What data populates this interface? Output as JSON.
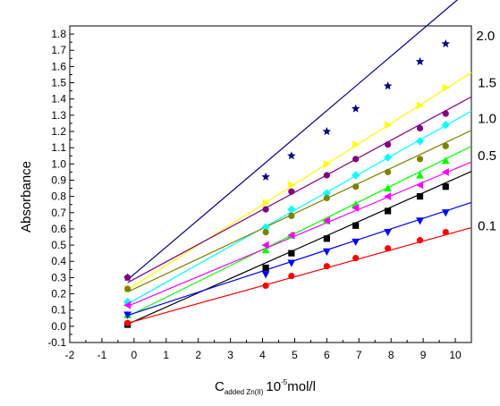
{
  "chart_data": {
    "type": "scatter",
    "ylabel": "Absorbance",
    "xlabel": {
      "main": "C",
      "subscript": "added Zn(II)",
      "unit_prefix": "10",
      "superscript": "-5",
      "unit_suffix": "mol/l"
    },
    "xlim": [
      -2,
      10.5
    ],
    "ylim": [
      -0.1,
      1.85
    ],
    "xticks": [
      "-2",
      "-1",
      "0",
      "1",
      "2",
      "3",
      "4",
      "5",
      "6",
      "7",
      "8",
      "9",
      "10"
    ],
    "yticks": [
      "-0.1",
      "0.0",
      "0.1",
      "0.2",
      "0.3",
      "0.4",
      "0.5",
      "0.6",
      "0.7",
      "0.8",
      "0.9",
      "1.0",
      "1.1",
      "1.2",
      "1.3",
      "1.4",
      "1.5",
      "1.6",
      "1.7",
      "1.8"
    ],
    "grid": false,
    "legend": "none",
    "x": [
      -0.2,
      4.1,
      4.9,
      6.0,
      6.9,
      7.9,
      8.9,
      9.7
    ],
    "annotations": [
      {
        "text": "2.0",
        "x": 10.65,
        "y": 1.79
      },
      {
        "text": "1.5",
        "x": 10.7,
        "y": 1.5
      },
      {
        "text": "1.0",
        "x": 10.7,
        "y": 1.28
      },
      {
        "text": "0.5",
        "x": 10.7,
        "y": 1.05
      },
      {
        "text": "0.1",
        "x": 10.7,
        "y": 0.62
      }
    ],
    "series": [
      {
        "color": "#000080",
        "marker": "star",
        "values": [
          0.3,
          0.92,
          1.05,
          1.2,
          1.34,
          1.48,
          1.63,
          1.74
        ],
        "fit": [
          0.32,
          0.168
        ]
      },
      {
        "color": "#ffff00",
        "marker": "tri-right",
        "values": [
          0.23,
          0.76,
          0.87,
          1.0,
          1.12,
          1.24,
          1.36,
          1.47
        ],
        "fit": [
          0.25,
          0.125
        ]
      },
      {
        "color": "#800080",
        "marker": "circle",
        "values": [
          0.3,
          0.72,
          0.83,
          0.93,
          1.03,
          1.12,
          1.22,
          1.31
        ],
        "fit": [
          0.29,
          0.107
        ]
      },
      {
        "color": "#00ffff",
        "marker": "diamond",
        "values": [
          0.15,
          0.61,
          0.72,
          0.82,
          0.93,
          1.04,
          1.14,
          1.24
        ],
        "fit": [
          0.16,
          0.111
        ]
      },
      {
        "color": "#808000",
        "marker": "circle",
        "values": [
          0.23,
          0.58,
          0.68,
          0.79,
          0.86,
          0.95,
          1.03,
          1.11
        ],
        "fit": [
          0.23,
          0.093
        ]
      },
      {
        "color": "#00ff00",
        "marker": "tri-up",
        "values": [
          0.07,
          0.47,
          0.56,
          0.65,
          0.75,
          0.85,
          0.93,
          1.02
        ],
        "fit": [
          0.08,
          0.098
        ]
      },
      {
        "color": "#ff00ff",
        "marker": "tri-left",
        "values": [
          0.13,
          0.5,
          0.56,
          0.65,
          0.73,
          0.8,
          0.87,
          0.95
        ],
        "fit": [
          0.14,
          0.083
        ]
      },
      {
        "color": "#000000",
        "marker": "square",
        "values": [
          0.01,
          0.36,
          0.45,
          0.54,
          0.62,
          0.71,
          0.8,
          0.86
        ],
        "fit": [
          0.03,
          0.088
        ]
      },
      {
        "color": "#0000ff",
        "marker": "tri-down",
        "values": [
          0.07,
          0.32,
          0.39,
          0.46,
          0.52,
          0.58,
          0.65,
          0.7
        ],
        "fit": [
          0.08,
          0.065
        ]
      },
      {
        "color": "#ff0000",
        "marker": "circle",
        "values": [
          0.02,
          0.25,
          0.31,
          0.37,
          0.42,
          0.48,
          0.53,
          0.58
        ],
        "fit": [
          0.03,
          0.055
        ]
      }
    ]
  }
}
